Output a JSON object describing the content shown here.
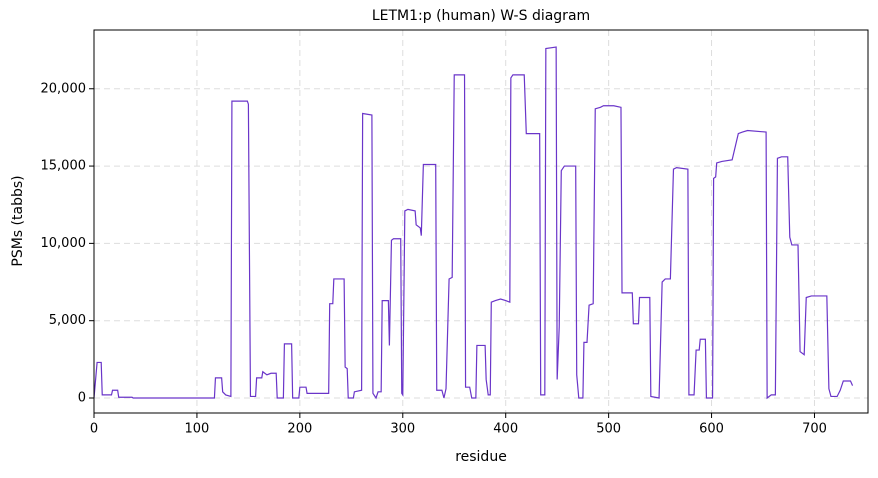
{
  "chart_data": {
    "type": "line",
    "title": "LETM1:p (human) W-S diagram",
    "xlabel": "residue",
    "ylabel": "PSMs (tabbs)",
    "color": "#6a35c9",
    "grid": true,
    "xlim": [
      0,
      752
    ],
    "ylim": [
      -970,
      23800
    ],
    "xticks": [
      0,
      100,
      200,
      300,
      400,
      500,
      600,
      700
    ],
    "yticks": [
      0,
      {
        "value": 5000,
        "label": "5,000"
      },
      {
        "value": 10000,
        "label": "10,000"
      },
      {
        "value": 15000,
        "label": "15,000"
      },
      {
        "value": 20000,
        "label": "20,000"
      }
    ],
    "x": [
      0,
      3,
      7,
      8,
      17,
      18,
      23,
      24,
      37,
      38,
      117,
      118,
      124,
      125,
      128,
      133,
      134,
      149,
      150,
      152,
      157,
      158,
      163,
      164,
      168,
      172,
      177,
      178,
      184,
      185,
      192,
      193,
      199,
      200,
      206,
      207,
      228,
      229,
      232,
      233,
      243,
      244,
      246,
      247,
      252,
      253,
      260,
      261,
      270,
      271,
      274,
      276,
      279,
      280,
      286,
      287,
      289,
      291,
      298,
      299,
      300,
      302,
      305,
      312,
      313,
      317,
      318,
      320,
      332,
      333,
      338,
      340,
      342,
      345,
      348,
      350,
      360,
      361,
      365,
      367,
      371,
      372,
      380,
      381,
      383,
      385,
      386,
      390,
      395,
      400,
      404,
      405,
      407,
      418,
      420,
      433,
      434,
      438,
      439,
      449,
      450,
      452,
      454,
      457,
      468,
      469,
      471,
      475,
      476,
      479,
      481,
      485,
      487,
      492,
      495,
      505,
      512,
      513,
      523,
      524,
      529,
      530,
      540,
      541,
      549,
      552,
      555,
      560,
      563,
      566,
      577,
      578,
      583,
      585,
      588,
      589,
      594,
      595,
      601,
      602,
      604,
      605,
      610,
      620,
      626,
      630,
      635,
      653,
      654,
      658,
      662,
      664,
      668,
      674,
      676,
      678,
      684,
      686,
      690,
      692,
      697,
      712,
      714,
      716,
      722,
      725,
      728,
      735,
      737
    ],
    "values": [
      0,
      2300,
      2300,
      200,
      200,
      500,
      500,
      50,
      50,
      0,
      0,
      1300,
      1300,
      400,
      200,
      100,
      19200,
      19200,
      19000,
      100,
      100,
      1300,
      1300,
      1700,
      1500,
      1600,
      1600,
      0,
      0,
      3500,
      3500,
      0,
      0,
      700,
      700,
      300,
      300,
      6100,
      6100,
      7700,
      7700,
      2000,
      1900,
      0,
      0,
      400,
      500,
      18400,
      18300,
      300,
      0,
      400,
      400,
      6300,
      6300,
      3400,
      10200,
      10300,
      10300,
      300,
      200,
      12100,
      12200,
      12100,
      11200,
      11000,
      10500,
      15100,
      15100,
      500,
      500,
      0,
      600,
      7700,
      7800,
      20900,
      20900,
      700,
      700,
      0,
      0,
      3400,
      3400,
      1200,
      200,
      200,
      6200,
      6300,
      6400,
      6300,
      6200,
      20700,
      20900,
      20900,
      17100,
      17100,
      200,
      200,
      22600,
      22700,
      1200,
      4600,
      14700,
      15000,
      15000,
      1500,
      0,
      0,
      3600,
      3600,
      6000,
      6100,
      18700,
      18800,
      18900,
      18900,
      18800,
      6800,
      6800,
      4800,
      4800,
      6500,
      6500,
      100,
      0,
      7500,
      7700,
      7700,
      14800,
      14900,
      14800,
      200,
      200,
      3100,
      3100,
      3800,
      3800,
      0,
      0,
      14200,
      14300,
      15200,
      15300,
      15400,
      17100,
      17200,
      17300,
      17200,
      0,
      200,
      200,
      15500,
      15600,
      15600,
      10400,
      9900,
      9900,
      3000,
      2800,
      6500,
      6600,
      6600,
      600,
      100,
      100,
      500,
      1100,
      1100,
      800
    ]
  }
}
